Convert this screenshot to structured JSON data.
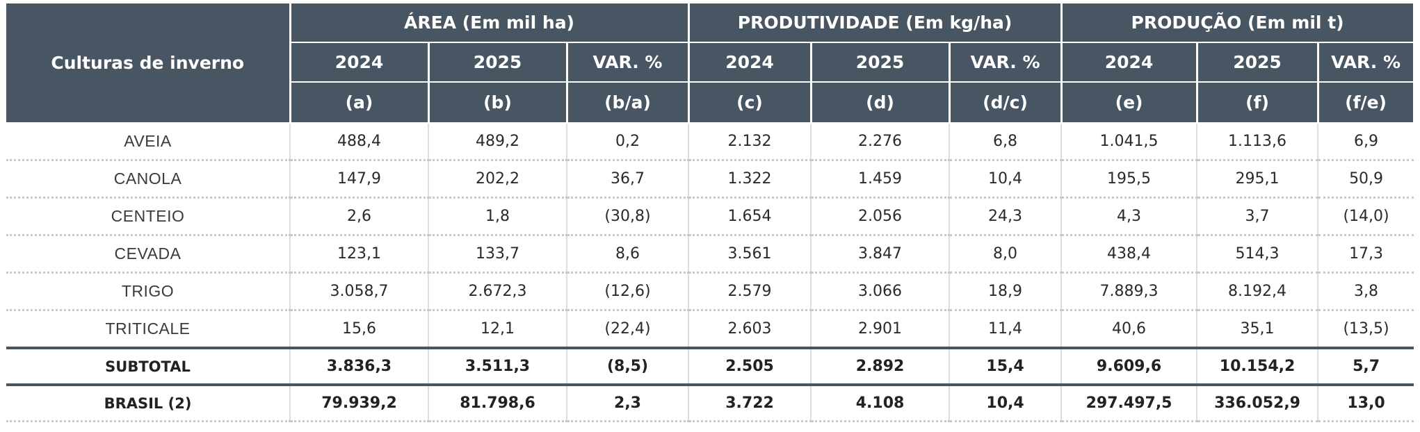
{
  "table": {
    "row_header_label": "Culturas de inverno",
    "groups": [
      {
        "label": "ÁREA (Em mil ha)"
      },
      {
        "label": "PRODUTIVIDADE (Em kg/ha)"
      },
      {
        "label": "PRODUÇÃO (Em mil t)"
      }
    ],
    "years": [
      "2024",
      "2025",
      "VAR. %",
      "2024",
      "2025",
      "VAR. %",
      "2024",
      "2025",
      "VAR. %"
    ],
    "letters": [
      "(a)",
      "(b)",
      "(b/a)",
      "(c)",
      "(d)",
      "(d/c)",
      "(e)",
      "(f)",
      "(f/e)"
    ],
    "rows": [
      {
        "name": "AVEIA",
        "values": [
          "488,4",
          "489,2",
          "0,2",
          "2.132",
          "2.276",
          "6,8",
          "1.041,5",
          "1.113,6",
          "6,9"
        ]
      },
      {
        "name": "CANOLA",
        "values": [
          "147,9",
          "202,2",
          "36,7",
          "1.322",
          "1.459",
          "10,4",
          "195,5",
          "295,1",
          "50,9"
        ]
      },
      {
        "name": "CENTEIO",
        "values": [
          "2,6",
          "1,8",
          "(30,8)",
          "1.654",
          "2.056",
          "24,3",
          "4,3",
          "3,7",
          "(14,0)"
        ]
      },
      {
        "name": "CEVADA",
        "values": [
          "123,1",
          "133,7",
          "8,6",
          "3.561",
          "3.847",
          "8,0",
          "438,4",
          "514,3",
          "17,3"
        ]
      },
      {
        "name": "TRIGO",
        "values": [
          "3.058,7",
          "2.672,3",
          "(12,6)",
          "2.579",
          "3.066",
          "18,9",
          "7.889,3",
          "8.192,4",
          "3,8"
        ]
      },
      {
        "name": "TRITICALE",
        "values": [
          "15,6",
          "12,1",
          "(22,4)",
          "2.603",
          "2.901",
          "11,4",
          "40,6",
          "35,1",
          "(13,5)"
        ]
      }
    ],
    "subtotal": {
      "name": "SUBTOTAL",
      "values": [
        "3.836,3",
        "3.511,3",
        "(8,5)",
        "2.505",
        "2.892",
        "15,4",
        "9.609,6",
        "10.154,2",
        "5,7"
      ]
    },
    "brasil": {
      "name": "BRASIL (2)",
      "values": [
        "79.939,2",
        "81.798,6",
        "2,3",
        "3.722",
        "4.108",
        "10,4",
        "297.497,5",
        "336.052,9",
        "13,0"
      ]
    }
  },
  "colors": {
    "header_bg": "#485563",
    "header_text": "#ffffff",
    "body_text": "#2a2a2a",
    "rule": "#485563"
  }
}
